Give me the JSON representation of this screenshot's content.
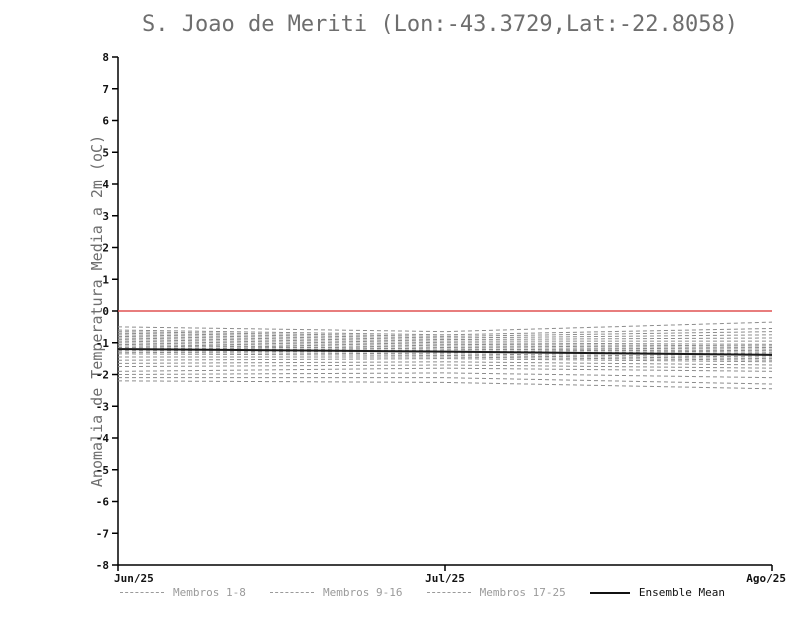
{
  "chart_data": {
    "type": "line",
    "title": "S. Joao de Meriti (Lon:-43.3729,Lat:-22.8058)",
    "ylabel": "Anomalia de Temperatura Media a 2m (oC)",
    "xlabel": "",
    "x_tick_labels": [
      "Jun/25",
      "Jul/25",
      "Ago/25"
    ],
    "y_ticks": [
      8,
      7,
      6,
      5,
      4,
      3,
      2,
      1,
      0,
      -1,
      -2,
      -3,
      -4,
      -5,
      -6,
      -7,
      -8
    ],
    "ylim": [
      -8,
      8
    ],
    "grid": false,
    "legend_position": "bottom",
    "colors": {
      "zero_line": "#e05252",
      "member": "#8c8c8c",
      "mean": "#1a1a1a",
      "axis": "#000000",
      "title": "#6e6e6e"
    },
    "series": [
      {
        "name": "Membro 1",
        "style": "dashed",
        "values": [
          -0.5,
          -0.65,
          -0.35
        ]
      },
      {
        "name": "Membro 2",
        "style": "dashed",
        "values": [
          -0.6,
          -0.75,
          -0.55
        ]
      },
      {
        "name": "Membro 3",
        "style": "dashed",
        "values": [
          -0.65,
          -0.8,
          -0.65
        ]
      },
      {
        "name": "Membro 4",
        "style": "dashed",
        "values": [
          -0.7,
          -0.85,
          -0.75
        ]
      },
      {
        "name": "Membro 5",
        "style": "dashed",
        "values": [
          -0.75,
          -0.9,
          -0.85
        ]
      },
      {
        "name": "Membro 6",
        "style": "dashed",
        "values": [
          -0.8,
          -0.95,
          -0.95
        ]
      },
      {
        "name": "Membro 7",
        "style": "dashed",
        "values": [
          -0.85,
          -1.0,
          -1.05
        ]
      },
      {
        "name": "Membro 8",
        "style": "dashed",
        "values": [
          -0.9,
          -1.05,
          -1.1
        ]
      },
      {
        "name": "Membro 9",
        "style": "dashed",
        "values": [
          -0.95,
          -1.1,
          -1.15
        ]
      },
      {
        "name": "Membro 10",
        "style": "dashed",
        "values": [
          -1.0,
          -1.15,
          -1.2
        ]
      },
      {
        "name": "Membro 11",
        "style": "dashed",
        "values": [
          -1.05,
          -1.2,
          -1.25
        ]
      },
      {
        "name": "Membro 12",
        "style": "dashed",
        "values": [
          -1.1,
          -1.2,
          -1.3
        ]
      },
      {
        "name": "Membro 13",
        "style": "dashed",
        "values": [
          -1.15,
          -1.25,
          -1.35
        ]
      },
      {
        "name": "Membro 14",
        "style": "dashed",
        "values": [
          -1.2,
          -1.3,
          -1.35
        ]
      },
      {
        "name": "Membro 15",
        "style": "dashed",
        "values": [
          -1.25,
          -1.3,
          -1.4
        ]
      },
      {
        "name": "Membro 16",
        "style": "dashed",
        "values": [
          -1.3,
          -1.35,
          -1.45
        ]
      },
      {
        "name": "Membro 17",
        "style": "dashed",
        "values": [
          -1.35,
          -1.4,
          -1.5
        ]
      },
      {
        "name": "Membro 18",
        "style": "dashed",
        "values": [
          -1.45,
          -1.45,
          -1.55
        ]
      },
      {
        "name": "Membro 19",
        "style": "dashed",
        "values": [
          -1.55,
          -1.5,
          -1.6
        ]
      },
      {
        "name": "Membro 20",
        "style": "dashed",
        "values": [
          -1.65,
          -1.6,
          -1.7
        ]
      },
      {
        "name": "Membro 21",
        "style": "dashed",
        "values": [
          -1.75,
          -1.7,
          -1.8
        ]
      },
      {
        "name": "Membro 22",
        "style": "dashed",
        "values": [
          -1.9,
          -1.8,
          -1.9
        ]
      },
      {
        "name": "Membro 23",
        "style": "dashed",
        "values": [
          -2.0,
          -1.95,
          -2.1
        ]
      },
      {
        "name": "Membro 24",
        "style": "dashed",
        "values": [
          -2.1,
          -2.1,
          -2.3
        ]
      },
      {
        "name": "Membro 25",
        "style": "dashed",
        "values": [
          -2.2,
          -2.25,
          -2.45
        ]
      },
      {
        "name": "Ensemble Mean",
        "style": "solid",
        "values": [
          -1.2,
          -1.28,
          -1.38
        ]
      }
    ],
    "legend": [
      {
        "label": "Membros 1-8",
        "style": "dashed",
        "color": "#9a9a9a",
        "label_color": "#9a9a9a"
      },
      {
        "label": "Membros 9-16",
        "style": "dashed",
        "color": "#9a9a9a",
        "label_color": "#9a9a9a"
      },
      {
        "label": "Membros 17-25",
        "style": "dashed",
        "color": "#9a9a9a",
        "label_color": "#9a9a9a"
      },
      {
        "label": "Ensemble Mean",
        "style": "solid",
        "color": "#111111",
        "label_color": "#111111"
      }
    ]
  }
}
